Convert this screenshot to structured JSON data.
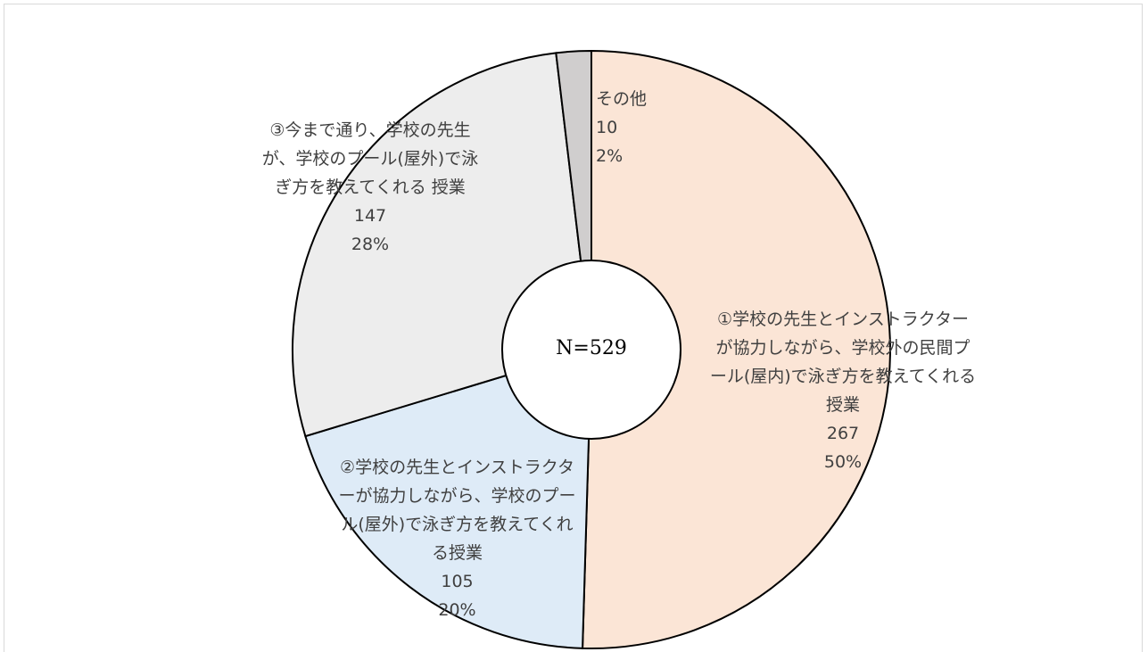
{
  "chart_data": {
    "type": "donut",
    "categories": [
      "①学校の先生とインストラクターが協力しながら、学校外の民間プール(屋内)で泳ぎ方を教えてくれる授業",
      "②学校の先生とインストラクターが協力しながら、学校のプール(屋外)で泳ぎ方を教えてくれる授業",
      "③今まで通り、学校の先生が、学校のプール(屋外)で泳ぎ方を教えてくれる 授業",
      "その他"
    ],
    "values": [
      267,
      105,
      147,
      10
    ],
    "percent_labels": [
      "50%",
      "20%",
      "28%",
      "2%"
    ],
    "colors": [
      "#fbe5d6",
      "#deebf7",
      "#ededed",
      "#d0cece"
    ],
    "center_label": "N=529"
  }
}
